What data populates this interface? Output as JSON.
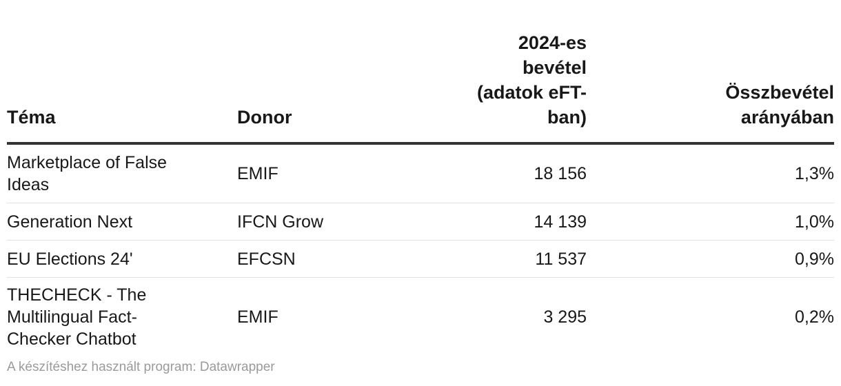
{
  "table": {
    "headers": {
      "tema": "Téma",
      "donor": "Donor",
      "revenue": "2024-es bevétel (adatok eFT-ban)",
      "ratio": "Összbevétel arányában"
    },
    "rows": [
      {
        "tema": "Marketplace of False Ideas",
        "donor": "EMIF",
        "revenue": "18 156",
        "ratio": "1,3%"
      },
      {
        "tema": "Generation Next",
        "donor": "IFCN Grow",
        "revenue": "14 139",
        "ratio": "1,0%"
      },
      {
        "tema": "EU Elections 24'",
        "donor": "EFCSN",
        "revenue": "11 537",
        "ratio": "0,9%"
      },
      {
        "tema": "THECHECK - The Multilingual Fact-Checker Chatbot",
        "donor": "EMIF",
        "revenue": "3 295",
        "ratio": "0,2%"
      }
    ]
  },
  "footer": {
    "credit": "A készítéshez használt program: Datawrapper"
  }
}
